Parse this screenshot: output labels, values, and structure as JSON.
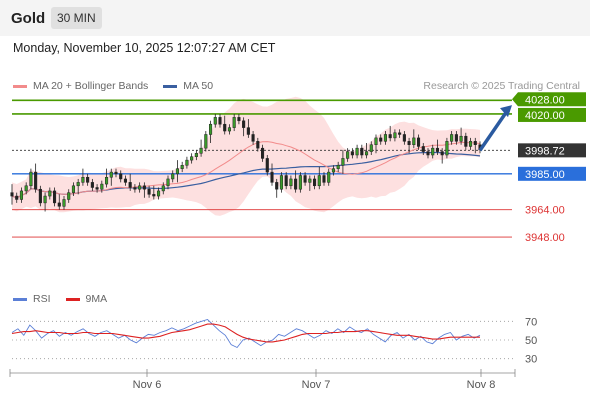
{
  "header": {
    "title": "Gold",
    "timeframe": "30 MIN"
  },
  "timestamp": "Monday, November 10, 2025 12:07:27 AM CET",
  "legend": {
    "main": [
      {
        "name": "MA 20 + Bollinger Bands",
        "color": "#f28b8b"
      },
      {
        "name": "MA 50",
        "color": "#3a5fa0"
      }
    ],
    "rsi": [
      {
        "name": "RSI",
        "color": "#5b7fd6"
      },
      {
        "name": "9MA",
        "color": "#dd2222"
      }
    ]
  },
  "credit": "Research © 2025 Trading Central",
  "chart_data": [
    {
      "type": "candlestick",
      "ylim": [
        3920,
        4034
      ],
      "x_ticks": [
        "Nov 6",
        "Nov 7",
        "Nov 8"
      ],
      "levels": [
        {
          "value": 4028.0,
          "label": "4028.00",
          "color": "#4a9a00",
          "kind": "resistance"
        },
        {
          "value": 4020.0,
          "label": "4020.00",
          "color": "#4a9a00",
          "kind": "resistance"
        },
        {
          "value": 3998.72,
          "label": "3998.72",
          "color": "#333333",
          "kind": "last-price"
        },
        {
          "value": 3985.0,
          "label": "3985.00",
          "color": "#2a6fdb",
          "kind": "pivot"
        },
        {
          "value": 3964.0,
          "label": "3964.00",
          "color": "#dd3333",
          "kind": "support"
        },
        {
          "value": 3948.0,
          "label": "3948.00",
          "color": "#dd3333",
          "kind": "support"
        }
      ],
      "target_arrow": {
        "from": 3998.72,
        "to": 4024
      },
      "close": [
        3972,
        3970,
        3975,
        3978,
        3986,
        3976,
        3968,
        3972,
        3975,
        3968,
        3966,
        3970,
        3974,
        3978,
        3980,
        3983,
        3980,
        3977,
        3976,
        3979,
        3983,
        3986,
        3985,
        3982,
        3980,
        3977,
        3976,
        3978,
        3976,
        3973,
        3972,
        3975,
        3978,
        3982,
        3985,
        3988,
        3990,
        3993,
        3995,
        3997,
        4000,
        4008,
        4014,
        4018,
        4014,
        4010,
        4012,
        4018,
        4016,
        4012,
        4008,
        4004,
        4000,
        3994,
        3986,
        3980,
        3976,
        3984,
        3978,
        3982,
        3976,
        3984,
        3980,
        3982,
        3978,
        3984,
        3980,
        3986,
        3988,
        3990,
        3994,
        3998,
        3996,
        4000,
        3996,
        3998,
        4002,
        4006,
        4004,
        4008,
        4006,
        4009,
        4008,
        4004,
        4002,
        4006,
        4001,
        3998,
        3996,
        4000,
        3998,
        3996,
        4004,
        4008,
        4004,
        4007,
        4001,
        4004,
        4002,
        3999
      ],
      "open": [
        3974,
        3972,
        3970,
        3975,
        3978,
        3986,
        3976,
        3968,
        3972,
        3975,
        3968,
        3966,
        3970,
        3974,
        3978,
        3980,
        3983,
        3980,
        3977,
        3976,
        3979,
        3983,
        3986,
        3985,
        3982,
        3980,
        3977,
        3976,
        3978,
        3976,
        3973,
        3972,
        3975,
        3978,
        3982,
        3985,
        3988,
        3990,
        3993,
        3995,
        3997,
        4000,
        4008,
        4014,
        4018,
        4014,
        4010,
        4012,
        4018,
        4016,
        4012,
        4008,
        4004,
        4000,
        3994,
        3986,
        3980,
        3976,
        3984,
        3978,
        3982,
        3976,
        3984,
        3980,
        3982,
        3978,
        3984,
        3980,
        3986,
        3988,
        3990,
        3994,
        3998,
        3996,
        4000,
        3996,
        3998,
        4002,
        4006,
        4004,
        4008,
        4006,
        4009,
        4008,
        4004,
        4002,
        4006,
        4001,
        3998,
        3996,
        4000,
        3998,
        3996,
        4004,
        4008,
        4004,
        4007,
        4001,
        4004,
        4002
      ]
    },
    {
      "type": "line",
      "ylim": [
        20,
        80
      ],
      "y_ticks": [
        70,
        50,
        30
      ],
      "series": [
        {
          "name": "RSI",
          "color": "#5b7fd6",
          "values": [
            58,
            62,
            55,
            66,
            60,
            52,
            57,
            60,
            54,
            58,
            55,
            59,
            62,
            57,
            54,
            58,
            60,
            56,
            52,
            55,
            50,
            47,
            52,
            56,
            55,
            58,
            60,
            63,
            60,
            62,
            65,
            68,
            70,
            72,
            66,
            60,
            55,
            45,
            42,
            50,
            52,
            48,
            44,
            48,
            50,
            56,
            54,
            58,
            62,
            60,
            56,
            52,
            55,
            60,
            57,
            62,
            58,
            64,
            60,
            58,
            62,
            56,
            52,
            48,
            55,
            58,
            52,
            56,
            50,
            54,
            48,
            46,
            52,
            56,
            58,
            50,
            54,
            56,
            52,
            55
          ]
        },
        {
          "name": "9MA",
          "color": "#dd2222",
          "values": [
            57,
            58,
            59,
            59,
            60,
            59,
            58,
            58,
            58,
            57,
            57,
            57,
            58,
            58,
            57,
            57,
            57,
            57,
            56,
            55,
            54,
            53,
            52,
            52,
            53,
            54,
            56,
            58,
            59,
            60,
            61,
            63,
            65,
            67,
            67,
            66,
            64,
            60,
            56,
            53,
            51,
            50,
            49,
            48,
            48,
            49,
            50,
            52,
            54,
            56,
            57,
            57,
            57,
            57,
            58,
            58,
            59,
            59,
            59,
            60,
            60,
            59,
            58,
            57,
            56,
            55,
            55,
            55,
            54,
            53,
            52,
            51,
            51,
            52,
            53,
            53,
            53,
            53,
            53,
            53
          ]
        }
      ]
    }
  ]
}
